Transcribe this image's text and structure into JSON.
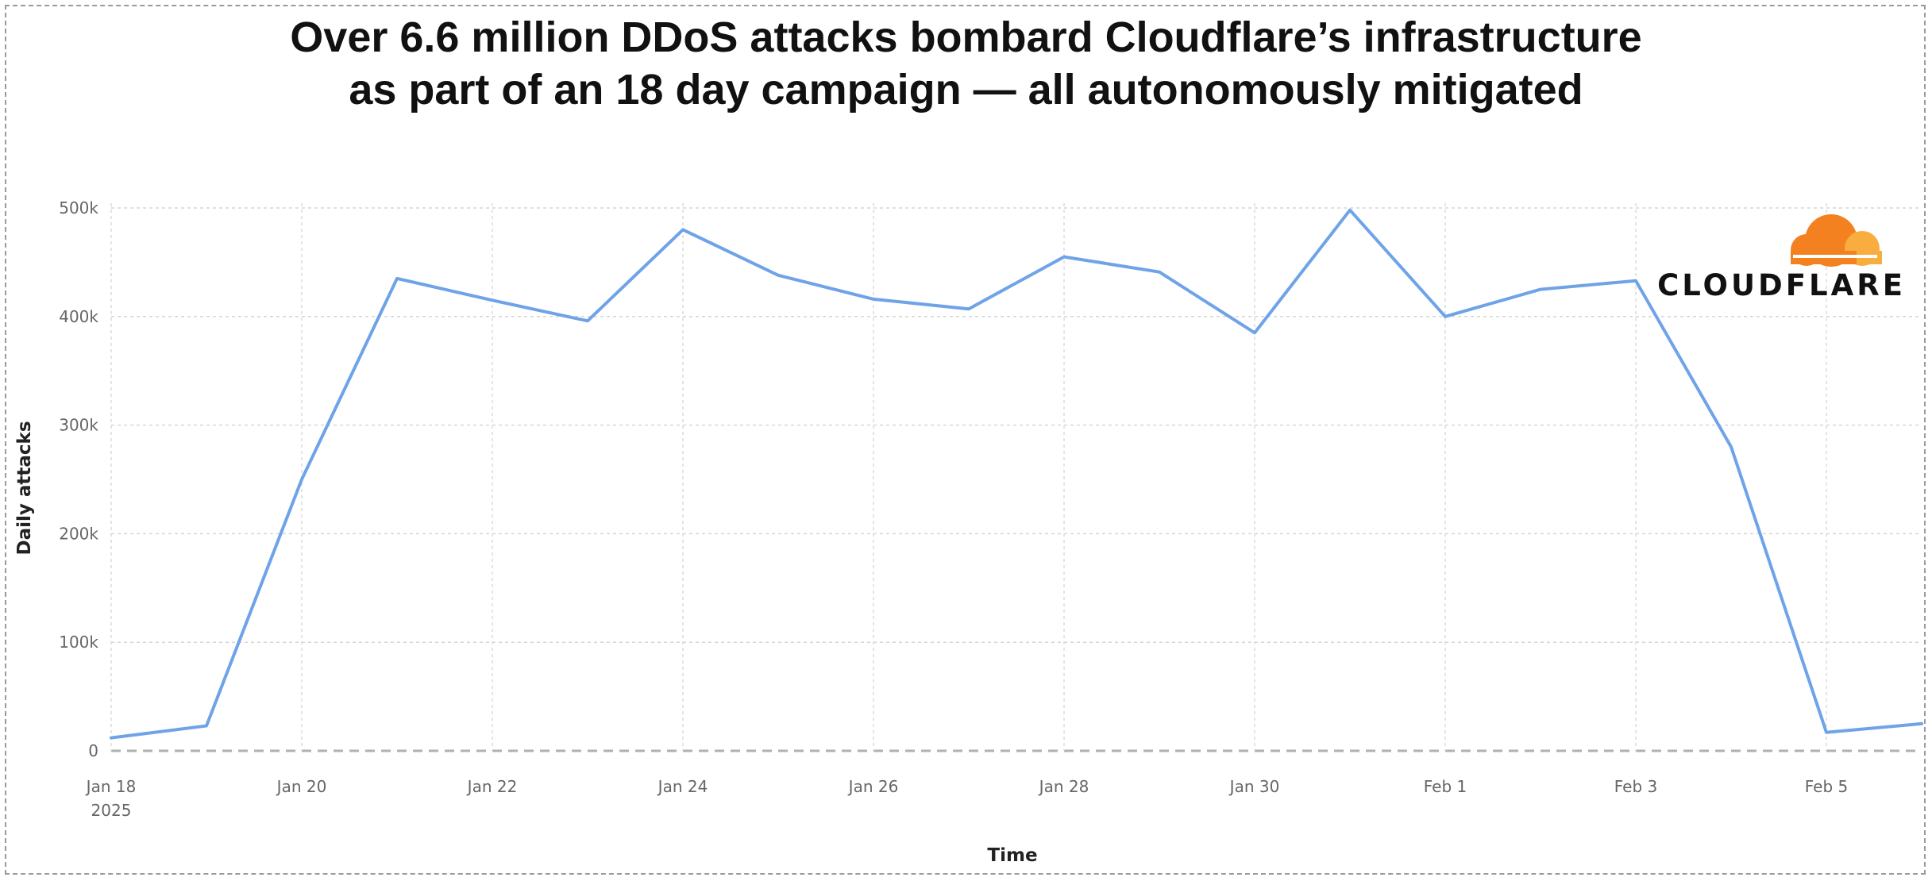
{
  "title": {
    "line1": "Over 6.6 million DDoS attacks bombard Cloudflare’s infrastructure",
    "line2": "as part of an 18 day campaign — all autonomously mitigated"
  },
  "logo": {
    "text": "CLOUDFLARE",
    "icon": "cloudflare-cloud-icon",
    "colors": [
      "#f48120",
      "#faad3f"
    ]
  },
  "chart_data": {
    "type": "line",
    "xlabel": "Time",
    "ylabel": "Daily attacks",
    "ylim": [
      0,
      500000
    ],
    "yticks": [
      0,
      100000,
      200000,
      300000,
      400000,
      500000
    ],
    "ytick_labels": [
      "0",
      "100k",
      "200k",
      "300k",
      "400k",
      "500k"
    ],
    "xticks": [
      "2025-01-18",
      "2025-01-20",
      "2025-01-22",
      "2025-01-24",
      "2025-01-26",
      "2025-01-28",
      "2025-01-30",
      "2025-02-01",
      "2025-02-03",
      "2025-02-05"
    ],
    "xtick_labels": [
      "Jan 18",
      "Jan 20",
      "Jan 22",
      "Jan 24",
      "Jan 26",
      "Jan 28",
      "Jan 30",
      "Feb 1",
      "Feb 3",
      "Feb 5"
    ],
    "xtick_sublabel": "2025",
    "grid": true,
    "line_color": "#6fa3e8",
    "series": [
      {
        "x": [
          "2025-01-18",
          "2025-01-19",
          "2025-01-20",
          "2025-01-21",
          "2025-01-22",
          "2025-01-23",
          "2025-01-24",
          "2025-01-25",
          "2025-01-26",
          "2025-01-27",
          "2025-01-28",
          "2025-01-29",
          "2025-01-30",
          "2025-01-31",
          "2025-02-01",
          "2025-02-02",
          "2025-02-03",
          "2025-02-04",
          "2025-02-05",
          "2025-02-06"
        ],
        "values": [
          12000,
          23000,
          250000,
          435000,
          415000,
          396000,
          480000,
          438000,
          416000,
          407000,
          455000,
          441000,
          385000,
          498000,
          400000,
          425000,
          433000,
          280000,
          17000,
          25000
        ]
      }
    ]
  }
}
